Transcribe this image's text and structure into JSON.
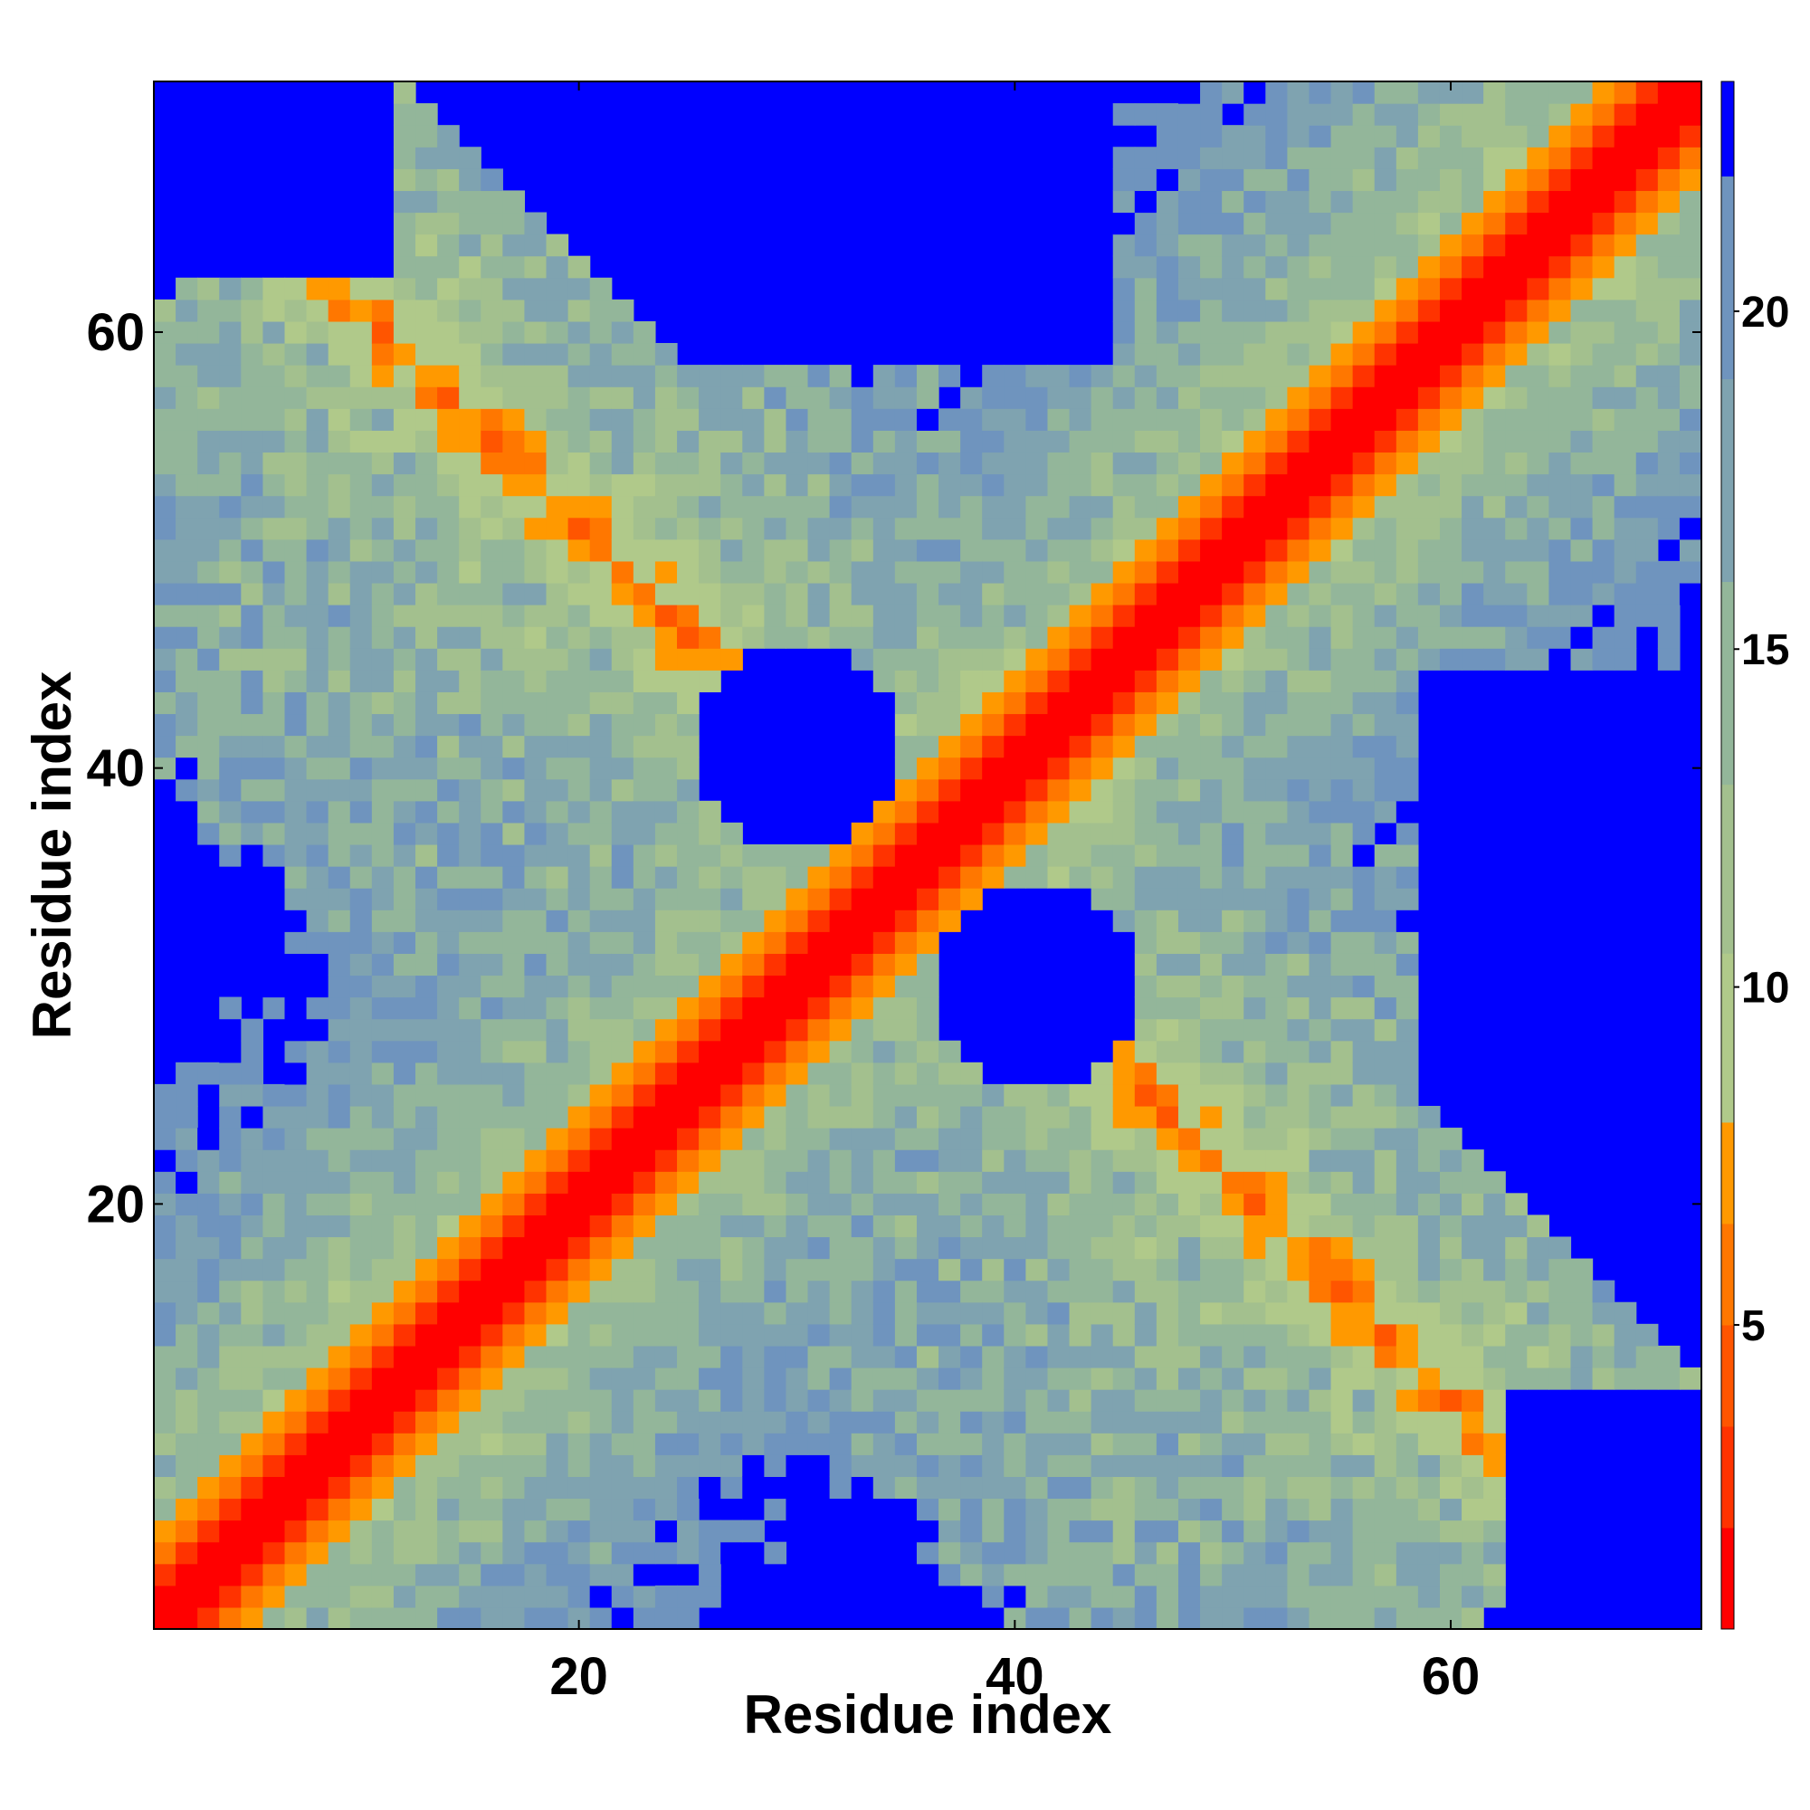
{
  "chart_data": {
    "type": "heatmap",
    "title": "",
    "xlabel": "Residue index",
    "ylabel": "Residue index",
    "n_residues": 71,
    "xlim": [
      0.5,
      71.5
    ],
    "ylim": [
      0.5,
      71.5
    ],
    "x_ticks": [
      20,
      40,
      60
    ],
    "x_tick_labels": [
      "20",
      "40",
      "60"
    ],
    "y_ticks": [
      20,
      40,
      60
    ],
    "y_tick_labels": [
      "20",
      "40",
      "60"
    ],
    "value_description": "distance between residues (contact map); cells above the cutoff shown as background",
    "cutoff": 23,
    "colorbar": {
      "range": [
        0.5,
        23.4
      ],
      "ticks": [
        5,
        10,
        15,
        20
      ],
      "tick_labels": [
        "5",
        "10",
        "15",
        "20"
      ],
      "colors": [
        {
          "from": 0.5,
          "to": 2.0,
          "color": "#ff0000"
        },
        {
          "from": 2.0,
          "to": 3.5,
          "color": "#ff3300"
        },
        {
          "from": 3.5,
          "to": 5.0,
          "color": "#ff5500"
        },
        {
          "from": 5.0,
          "to": 6.5,
          "color": "#ff7700"
        },
        {
          "from": 6.5,
          "to": 8.0,
          "color": "#ff9900"
        },
        {
          "from": 8.0,
          "to": 10.5,
          "color": "#b0c98a"
        },
        {
          "from": 10.5,
          "to": 13.0,
          "color": "#a3c08e"
        },
        {
          "from": 13.0,
          "to": 16.0,
          "color": "#93b69a"
        },
        {
          "from": 16.0,
          "to": 19.0,
          "color": "#7fa3b0"
        },
        {
          "from": 19.0,
          "to": 22.0,
          "color": "#6f94be"
        },
        {
          "from": 22.0,
          "to": 23.4,
          "color": "#0000ff"
        }
      ]
    },
    "background_color": "#0000ff",
    "contact_regions": [
      {
        "description": "main diagonal",
        "start": [
          1,
          1
        ],
        "end": [
          71,
          71
        ],
        "value": 1
      },
      {
        "description": "cross-strand band (residues 1-35 vs 35-1)",
        "value_range": [
          6,
          20
        ]
      },
      {
        "description": "cross-strand band (residues 36-71 vs 71-36)",
        "value_range": [
          6,
          20
        ]
      }
    ]
  }
}
